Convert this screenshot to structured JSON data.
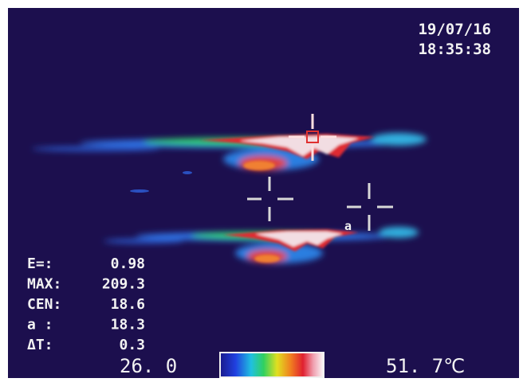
{
  "timestamp": {
    "date": "19/07/16",
    "time": "18:35:38"
  },
  "readings": [
    {
      "label": "E=:",
      "value": "0.98"
    },
    {
      "label": "MAX:",
      "value": "209.3"
    },
    {
      "label": "CEN:",
      "value": "18.6"
    },
    {
      "label": "a  :",
      "value": "18.3"
    },
    {
      "label": "ΔT:",
      "value": "0.3"
    }
  ],
  "marker_label": "a",
  "scale": {
    "min": "26. 0",
    "max": "51. 7℃"
  }
}
